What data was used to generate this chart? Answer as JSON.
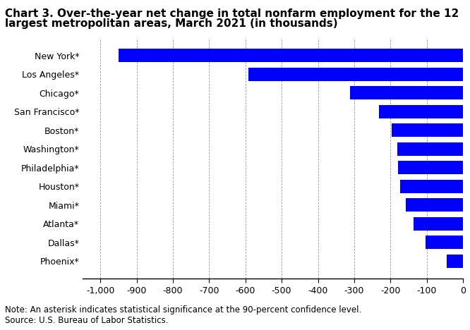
{
  "title_line1": "Chart 3. Over-the-year net change in total nonfarm employment for the 12",
  "title_line2": "largest metropolitan areas, March 2021 (in thousands)",
  "categories": [
    "New York*",
    "Los Angeles*",
    "Chicago*",
    "San Francisco*",
    "Boston*",
    "Washington*",
    "Philadelphia*",
    "Houston*",
    "Miami*",
    "Atlanta*",
    "Dallas*",
    "Phoenix*"
  ],
  "values": [
    -950,
    -591,
    -312,
    -231,
    -196,
    -182,
    -180,
    -174,
    -158,
    -137,
    -104,
    -44
  ],
  "bar_color": "#0000FF",
  "xlim": [
    -1050,
    0
  ],
  "xticks": [
    -1000,
    -900,
    -800,
    -700,
    -600,
    -500,
    -400,
    -300,
    -200,
    -100,
    0
  ],
  "note": "Note: An asterisk indicates statistical significance at the 90-percent confidence level.",
  "source": "Source: U.S. Bureau of Labor Statistics.",
  "background_color": "#ffffff",
  "title_fontsize": 11,
  "tick_fontsize": 9,
  "note_fontsize": 8.5
}
